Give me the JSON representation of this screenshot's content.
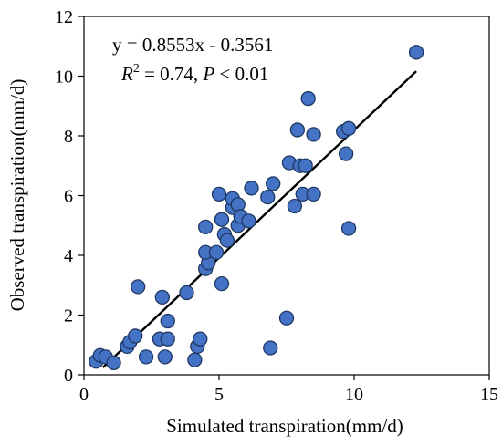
{
  "chart_data": {
    "type": "scatter",
    "xlabel": "Simulated transpiration(mm/d)",
    "ylabel": "Observed  transpiration(mm/d)",
    "xlim": [
      0,
      15
    ],
    "ylim": [
      0,
      12
    ],
    "xticks": [
      "0",
      "5",
      "10",
      "15"
    ],
    "yticks": [
      "0",
      "2",
      "4",
      "6",
      "8",
      "10",
      "12"
    ],
    "grid": false,
    "marker_color": "#4472C4",
    "marker_edge": "#1F3864",
    "annotation": {
      "equation": "y = 0.8553x - 0.3561",
      "r2_prefix": "R",
      "r2_sup": "2",
      "r2_value": " = 0.74, ",
      "p_symbol": "P",
      "p_value": " < 0.01"
    },
    "trendline": {
      "slope": 0.8553,
      "intercept": -0.3561,
      "x_range": [
        0.7,
        12.3
      ]
    },
    "points": [
      [
        0.45,
        0.45
      ],
      [
        0.6,
        0.65
      ],
      [
        0.8,
        0.6
      ],
      [
        1.1,
        0.4
      ],
      [
        1.6,
        0.95
      ],
      [
        1.7,
        1.1
      ],
      [
        1.9,
        1.3
      ],
      [
        2.0,
        2.95
      ],
      [
        2.3,
        0.6
      ],
      [
        2.8,
        1.2
      ],
      [
        2.9,
        2.6
      ],
      [
        3.0,
        0.6
      ],
      [
        3.1,
        1.8
      ],
      [
        3.1,
        1.2
      ],
      [
        3.8,
        2.75
      ],
      [
        4.1,
        0.5
      ],
      [
        4.2,
        0.95
      ],
      [
        4.3,
        1.2
      ],
      [
        4.5,
        3.55
      ],
      [
        4.6,
        3.75
      ],
      [
        4.5,
        4.1
      ],
      [
        4.5,
        4.95
      ],
      [
        4.9,
        4.1
      ],
      [
        5.0,
        6.05
      ],
      [
        5.1,
        3.05
      ],
      [
        5.1,
        5.2
      ],
      [
        5.2,
        4.7
      ],
      [
        5.3,
        4.5
      ],
      [
        5.5,
        5.6
      ],
      [
        5.5,
        5.9
      ],
      [
        5.7,
        5.7
      ],
      [
        5.7,
        5.0
      ],
      [
        5.8,
        5.3
      ],
      [
        6.1,
        5.15
      ],
      [
        6.2,
        6.25
      ],
      [
        6.8,
        5.95
      ],
      [
        6.9,
        0.9
      ],
      [
        7.0,
        6.4
      ],
      [
        7.5,
        1.9
      ],
      [
        7.6,
        7.1
      ],
      [
        7.8,
        5.65
      ],
      [
        7.9,
        8.2
      ],
      [
        8.0,
        7.0
      ],
      [
        8.1,
        6.05
      ],
      [
        8.2,
        7.0
      ],
      [
        8.3,
        9.25
      ],
      [
        8.5,
        8.05
      ],
      [
        8.5,
        6.05
      ],
      [
        9.6,
        8.15
      ],
      [
        9.7,
        7.4
      ],
      [
        9.8,
        8.25
      ],
      [
        9.8,
        4.9
      ],
      [
        12.3,
        10.8
      ]
    ]
  }
}
